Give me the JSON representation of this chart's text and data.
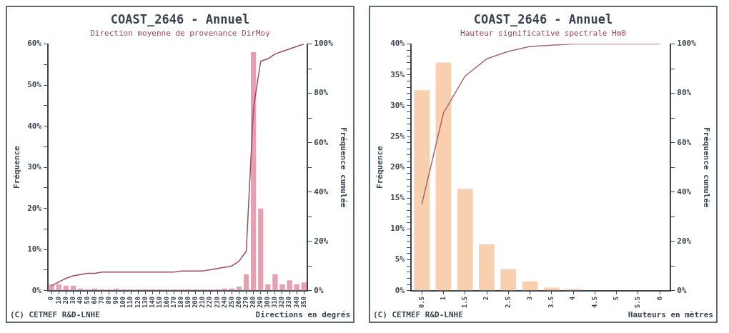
{
  "chart_data": [
    {
      "type": "bar",
      "title": "COAST_2646 - Annuel",
      "subtitle": "Direction moyenne de provenance DirMoy",
      "ylabel": "Fréquence",
      "y2label": "Fréquence cumulée",
      "xlabel": "Directions en degrés",
      "annotations": [
        "(C) CETMEF R&D-LNHE"
      ],
      "categories": [
        "0",
        "10",
        "20",
        "30",
        "40",
        "50",
        "60",
        "70",
        "80",
        "90",
        "100",
        "110",
        "120",
        "130",
        "140",
        "150",
        "160",
        "170",
        "180",
        "190",
        "200",
        "210",
        "220",
        "230",
        "240",
        "250",
        "260",
        "270",
        "280",
        "290",
        "300",
        "310",
        "320",
        "330",
        "340",
        "350"
      ],
      "series": [
        {
          "color": "#e8a0b0",
          "values": [
            1.5,
            1.5,
            1.2,
            1.2,
            0.5,
            0.3,
            0.5,
            0.3,
            0.3,
            0.5,
            0.3,
            0.3,
            0.3,
            0.3,
            0.3,
            0.3,
            0.3,
            0.3,
            0.3,
            0.3,
            0.3,
            0.3,
            0.3,
            0.3,
            0.5,
            0.5,
            1,
            4,
            58,
            20,
            1.5,
            4,
            1.5,
            2.5,
            1.5,
            2
          ]
        },
        {
          "type": "line",
          "axis": "y2",
          "color": "#a04860",
          "values": [
            2,
            3.5,
            5,
            6,
            6.5,
            7,
            7,
            7.5,
            7.5,
            7.5,
            7.5,
            7.5,
            7.5,
            7.5,
            7.5,
            7.5,
            7.5,
            7.5,
            8,
            8,
            8,
            8,
            8.5,
            9,
            9.5,
            10,
            12,
            16,
            74,
            93,
            94,
            96,
            97,
            98,
            99,
            100
          ]
        }
      ],
      "ylim": [
        0,
        60
      ],
      "yticks": [
        {
          "value": 0,
          "label": "0%"
        },
        {
          "value": 5,
          "label": null
        },
        {
          "value": 10,
          "label": "10%"
        },
        {
          "value": 15,
          "label": null
        },
        {
          "value": 20,
          "label": "20%"
        },
        {
          "value": 25,
          "label": null
        },
        {
          "value": 30,
          "label": "30%"
        },
        {
          "value": 35,
          "label": null
        },
        {
          "value": 40,
          "label": "40%"
        },
        {
          "value": 45,
          "label": null
        },
        {
          "value": 50,
          "label": "50%"
        },
        {
          "value": 55,
          "label": null
        },
        {
          "value": 60,
          "label": "60%"
        }
      ],
      "y2lim": [
        0,
        100
      ],
      "y2ticks": [
        {
          "value": 0,
          "label": "0%"
        },
        {
          "value": 10,
          "label": null
        },
        {
          "value": 20,
          "label": "20%"
        },
        {
          "value": 30,
          "label": null
        },
        {
          "value": 40,
          "label": "40%"
        },
        {
          "value": 50,
          "label": null
        },
        {
          "value": 60,
          "label": "60%"
        },
        {
          "value": 70,
          "label": null
        },
        {
          "value": 80,
          "label": "80%"
        },
        {
          "value": 90,
          "label": null
        },
        {
          "value": 100,
          "label": "100%"
        }
      ],
      "grid": false,
      "legend": false
    },
    {
      "type": "bar",
      "title": "COAST_2646 - Annuel",
      "subtitle": "Hauteur significative spectrale Hm0",
      "ylabel": "Fréquence",
      "y2label": "Fréquence cumulée",
      "xlabel": "Hauteurs en mètres",
      "annotations": [
        "(C) CETMEF R&D-LNHE"
      ],
      "categories": [
        "0.5",
        "1",
        "1.5",
        "2",
        "2.5",
        "3",
        "3.5",
        "4",
        "4.5",
        "5",
        "5.5",
        "6"
      ],
      "series": [
        {
          "color": "#f8d0b0",
          "values": [
            32.5,
            37,
            16.5,
            7.5,
            3.5,
            1.5,
            0.5,
            0.3,
            0,
            0,
            0,
            0
          ]
        },
        {
          "type": "line",
          "axis": "y2",
          "color": "#a06870",
          "values": [
            35,
            72,
            87,
            94,
            97,
            99,
            99.5,
            100,
            100,
            100,
            100,
            100
          ]
        }
      ],
      "ylim": [
        0,
        40
      ],
      "yticks": [
        {
          "value": 0,
          "label": "0%"
        },
        {
          "value": 1,
          "label": null
        },
        {
          "value": 2,
          "label": null
        },
        {
          "value": 3,
          "label": null
        },
        {
          "value": 4,
          "label": null
        },
        {
          "value": 5,
          "label": "5%"
        },
        {
          "value": 6,
          "label": null
        },
        {
          "value": 7,
          "label": null
        },
        {
          "value": 8,
          "label": null
        },
        {
          "value": 9,
          "label": null
        },
        {
          "value": 10,
          "label": "10%"
        },
        {
          "value": 11,
          "label": null
        },
        {
          "value": 12,
          "label": null
        },
        {
          "value": 13,
          "label": null
        },
        {
          "value": 14,
          "label": null
        },
        {
          "value": 15,
          "label": "15%"
        },
        {
          "value": 16,
          "label": null
        },
        {
          "value": 17,
          "label": null
        },
        {
          "value": 18,
          "label": null
        },
        {
          "value": 19,
          "label": null
        },
        {
          "value": 20,
          "label": "20%"
        },
        {
          "value": 21,
          "label": null
        },
        {
          "value": 22,
          "label": null
        },
        {
          "value": 23,
          "label": null
        },
        {
          "value": 24,
          "label": null
        },
        {
          "value": 25,
          "label": "25%"
        },
        {
          "value": 26,
          "label": null
        },
        {
          "value": 27,
          "label": null
        },
        {
          "value": 28,
          "label": null
        },
        {
          "value": 29,
          "label": null
        },
        {
          "value": 30,
          "label": "30%"
        },
        {
          "value": 31,
          "label": null
        },
        {
          "value": 32,
          "label": null
        },
        {
          "value": 33,
          "label": null
        },
        {
          "value": 34,
          "label": null
        },
        {
          "value": 35,
          "label": "35%"
        },
        {
          "value": 36,
          "label": null
        },
        {
          "value": 37,
          "label": null
        },
        {
          "value": 38,
          "label": null
        },
        {
          "value": 39,
          "label": null
        },
        {
          "value": 40,
          "label": "40%"
        }
      ],
      "y2lim": [
        0,
        100
      ],
      "y2ticks": [
        {
          "value": 0,
          "label": "0%"
        },
        {
          "value": 10,
          "label": null
        },
        {
          "value": 20,
          "label": "20%"
        },
        {
          "value": 30,
          "label": null
        },
        {
          "value": 40,
          "label": "40%"
        },
        {
          "value": 50,
          "label": null
        },
        {
          "value": 60,
          "label": "60%"
        },
        {
          "value": 70,
          "label": null
        },
        {
          "value": 80,
          "label": "80%"
        },
        {
          "value": 90,
          "label": null
        },
        {
          "value": 100,
          "label": "100%"
        }
      ],
      "grid": false,
      "legend": false
    }
  ]
}
